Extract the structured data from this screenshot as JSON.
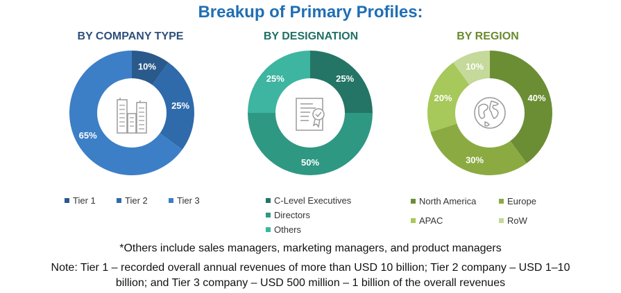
{
  "title": "Breakup of Primary Profiles:",
  "chart_data": [
    {
      "type": "pie",
      "title": "BY COMPANY TYPE",
      "title_color": "#2e4f7c",
      "categories": [
        "Tier 1",
        "Tier 2",
        "Tier 3"
      ],
      "values": [
        10,
        25,
        65
      ],
      "labels": [
        "10%",
        "25%",
        "65%"
      ],
      "colors": [
        "#2a5a8c",
        "#2f6aab",
        "#3c7fc7"
      ],
      "icon": "buildings-icon",
      "legend": "bottom"
    },
    {
      "type": "pie",
      "title": "BY DESIGNATION",
      "title_color": "#1f6f66",
      "categories": [
        "C-Level Executives",
        "Directors",
        "Others"
      ],
      "values": [
        25,
        50,
        25
      ],
      "labels": [
        "25%",
        "50%",
        "25%"
      ],
      "colors": [
        "#247565",
        "#2f9882",
        "#3db5a0"
      ],
      "icon": "certificate-icon",
      "legend": "bottom"
    },
    {
      "type": "pie",
      "title": "BY REGION",
      "title_color": "#6a8a2e",
      "categories": [
        "North America",
        "Europe",
        "APAC",
        "RoW"
      ],
      "values": [
        40,
        30,
        20,
        10
      ],
      "labels": [
        "40%",
        "30%",
        "20%",
        "10%"
      ],
      "colors": [
        "#6b8e34",
        "#8bab42",
        "#a7c85a",
        "#c4d99a"
      ],
      "icon": "globe-icon",
      "legend": "bottom"
    }
  ],
  "notes": {
    "others": "*Others include sales managers, marketing managers, and product managers",
    "tier_line1": "Note: Tier 1 – recorded overall annual revenues of more than USD 10 billion; Tier 2 company – USD 1–10",
    "tier_line2": "billion; and Tier 3 company – USD 500 million – 1 billion of the overall revenues"
  }
}
